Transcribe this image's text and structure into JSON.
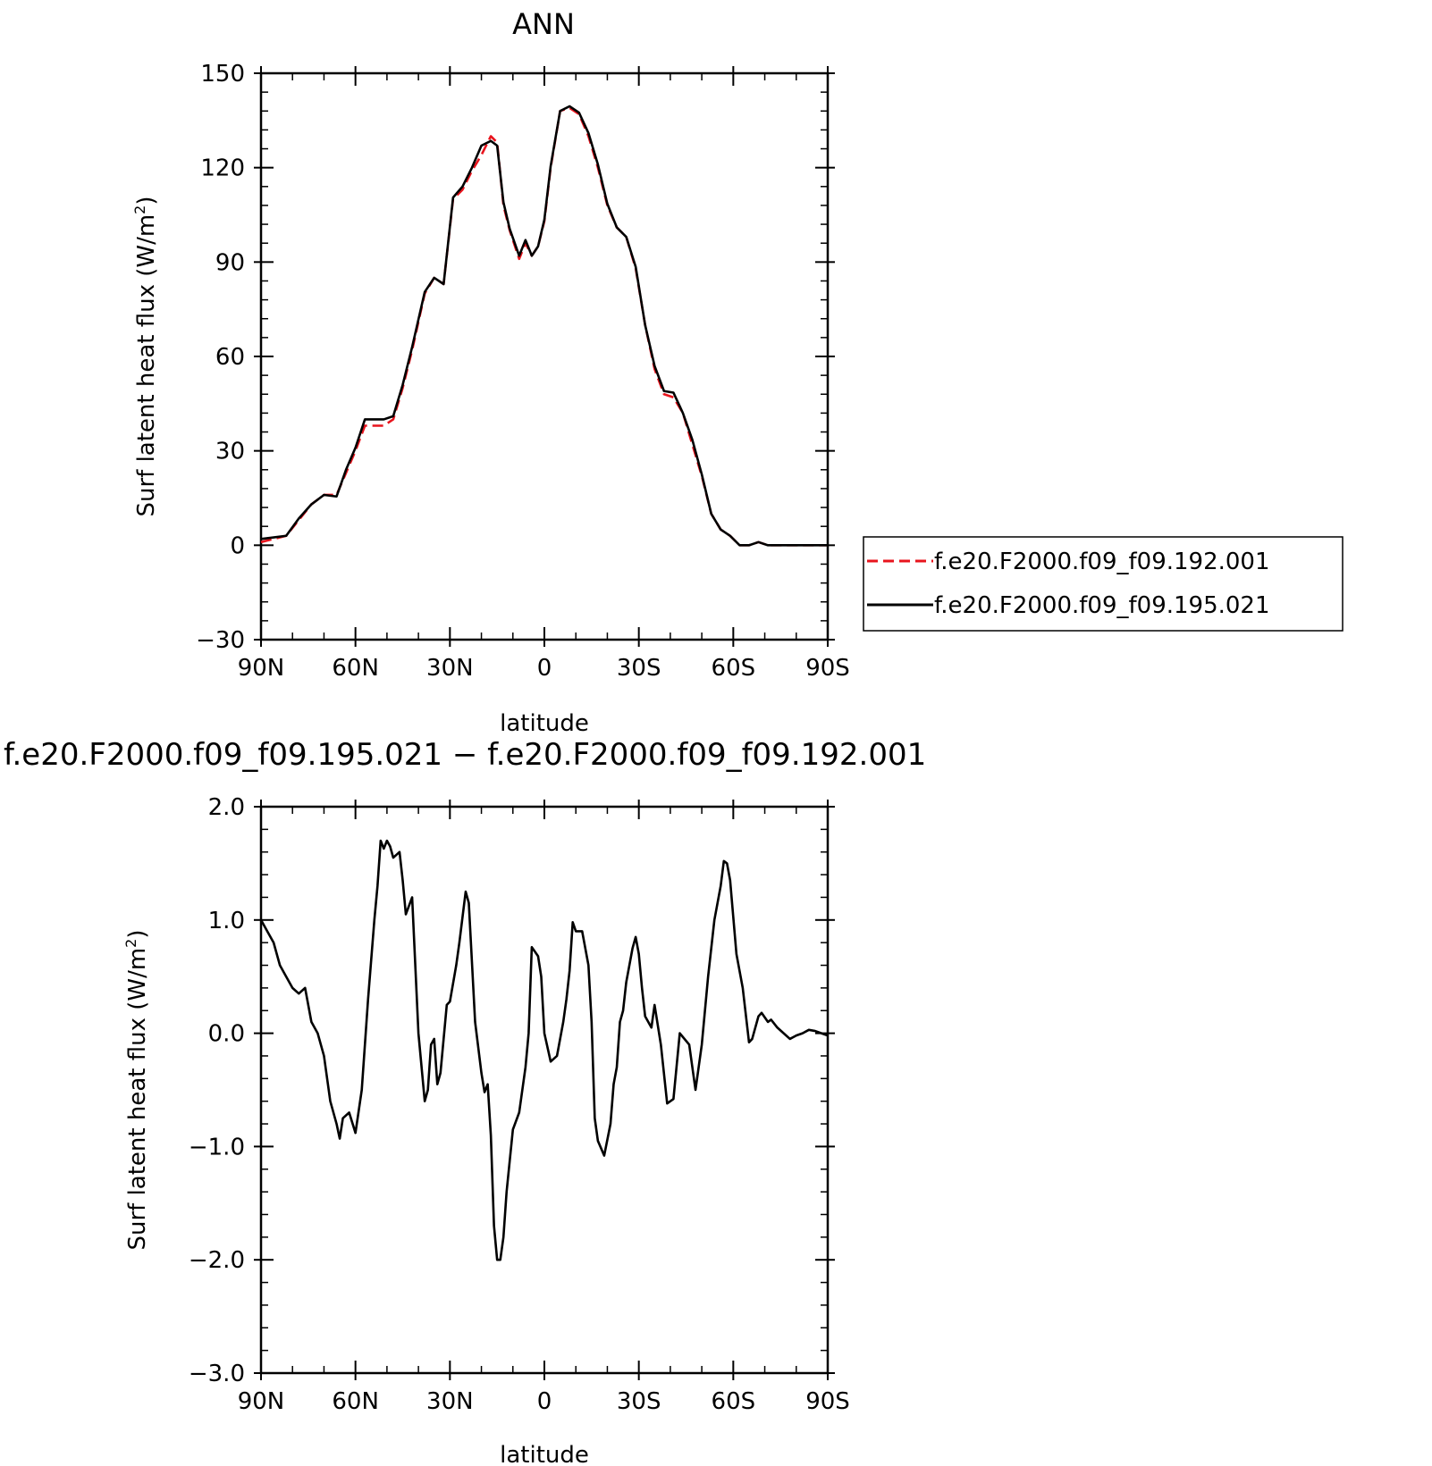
{
  "chart_data": [
    {
      "type": "line",
      "title": "ANN",
      "xlabel": "latitude",
      "ylabel": "Surf latent heat flux (W/m",
      "ylabel_sup": "2",
      "ylabel_close": ")",
      "xlim": [
        90,
        -90
      ],
      "ylim": [
        -30,
        150
      ],
      "x_ticks": [
        90,
        60,
        30,
        0,
        -30,
        -60,
        -90
      ],
      "x_tick_labels": [
        "90N",
        "60N",
        "30N",
        "0",
        "30S",
        "60S",
        "90S"
      ],
      "y_ticks": [
        -30,
        0,
        30,
        60,
        90,
        120,
        150
      ],
      "y_tick_labels": [
        "−30",
        "0",
        "30",
        "60",
        "90",
        "120",
        "150"
      ],
      "legend_position": "right",
      "x": [
        90,
        86,
        82,
        78,
        74,
        70,
        66,
        63,
        60,
        57,
        54,
        51,
        48,
        45,
        42,
        38,
        35,
        32,
        29,
        26,
        23,
        20,
        17,
        15,
        13,
        11,
        8,
        6,
        4,
        2,
        0,
        -2,
        -5,
        -8,
        -11,
        -14,
        -17,
        -20,
        -23,
        -26,
        -29,
        -32,
        -35,
        -38,
        -41,
        -44,
        -47,
        -50,
        -53,
        -56,
        -59,
        -62,
        -65,
        -68,
        -71,
        -74,
        -77,
        -80,
        -83,
        -86,
        -90
      ],
      "series": [
        {
          "name": "f.e20.F2000.f09_f09.192.001",
          "color": "#e8141d",
          "dash": "dashed",
          "values": [
            1.0,
            2.0,
            3.0,
            8.0,
            13.0,
            16.0,
            16.0,
            23.0,
            30.0,
            38.0,
            38.0,
            38.0,
            40.0,
            50.0,
            62.0,
            80.0,
            85.0,
            83.0,
            110.0,
            113.0,
            119.0,
            124.0,
            130.0,
            128.0,
            108.0,
            100.0,
            91.0,
            96.0,
            92.0,
            95.0,
            103.0,
            120.0,
            138.0,
            139.0,
            137.0,
            130.0,
            120.0,
            108.0,
            101.0,
            98.0,
            88.0,
            70.0,
            56.0,
            48.0,
            47.0,
            42.0,
            32.0,
            22.0,
            10.0,
            5.0,
            3.0,
            0.0,
            0.0,
            1.0,
            0.0,
            0.0,
            0.0,
            0.0,
            0.0,
            0.0,
            0.0
          ]
        },
        {
          "name": "f.e20.F2000.f09_f09.195.021",
          "color": "#000000",
          "dash": "solid",
          "values": [
            2.0,
            2.5,
            3.0,
            8.5,
            13.0,
            16.0,
            15.5,
            24.0,
            31.0,
            40.0,
            40.0,
            40.0,
            41.0,
            51.0,
            63.0,
            80.5,
            85.0,
            83.0,
            110.5,
            114.0,
            120.0,
            127.0,
            128.5,
            127.0,
            109.0,
            100.5,
            92.0,
            97.0,
            92.0,
            95.0,
            103.5,
            120.5,
            138.0,
            139.5,
            137.5,
            131.0,
            121.0,
            108.5,
            101.0,
            98.0,
            88.5,
            70.0,
            57.0,
            49.0,
            48.5,
            42.0,
            33.5,
            22.5,
            10.0,
            5.0,
            3.0,
            0.0,
            0.0,
            1.0,
            0.0,
            0.0,
            0.0,
            0.0,
            0.0,
            0.0,
            0.0
          ]
        }
      ]
    },
    {
      "type": "line",
      "title": "f.e20.F2000.f09_f09.195.021 − f.e20.F2000.f09_f09.192.001",
      "xlabel": "latitude",
      "ylabel": "Surf latent heat flux (W/m",
      "ylabel_sup": "2",
      "ylabel_close": ")",
      "xlim": [
        90,
        -90
      ],
      "ylim": [
        -3.0,
        2.0
      ],
      "x_ticks": [
        90,
        60,
        30,
        0,
        -30,
        -60,
        -90
      ],
      "x_tick_labels": [
        "90N",
        "60N",
        "30N",
        "0",
        "30S",
        "60S",
        "90S"
      ],
      "y_ticks": [
        -3.0,
        -2.0,
        -1.0,
        0.0,
        1.0,
        2.0
      ],
      "y_tick_labels": [
        "−3.0",
        "−2.0",
        "−1.0",
        "0.0",
        "1.0",
        "2.0"
      ],
      "x": [
        90,
        88,
        86,
        84,
        82,
        80,
        78,
        76,
        74,
        72,
        70,
        68,
        66,
        65,
        64,
        62,
        60,
        58,
        56,
        54,
        53,
        52,
        51,
        50,
        49,
        48,
        46,
        45,
        44,
        42,
        40,
        38,
        37,
        36,
        35,
        34,
        33,
        31,
        30,
        28,
        27,
        25,
        24,
        22,
        20,
        19,
        18,
        17,
        16,
        15,
        14,
        13,
        12,
        10,
        8,
        6,
        5,
        4,
        3,
        2,
        1,
        0,
        -2,
        -4,
        -6,
        -7,
        -8,
        -9,
        -10,
        -12,
        -14,
        -15,
        -16,
        -17,
        -19,
        -21,
        -22,
        -23,
        -24,
        -25,
        -26,
        -28,
        -29,
        -30,
        -31,
        -32,
        -34,
        -35,
        -37,
        -39,
        -41,
        -43,
        -46,
        -48,
        -50,
        -52,
        -54,
        -56,
        -57,
        -58,
        -59,
        -61,
        -63,
        -65,
        -66,
        -68,
        -69,
        -71,
        -72,
        -74,
        -76,
        -78,
        -80,
        -82,
        -84,
        -86,
        -88,
        -90
      ],
      "series": [
        {
          "name": "",
          "color": "#000000",
          "dash": "solid",
          "values": [
            1.0,
            0.9,
            0.8,
            0.6,
            0.5,
            0.4,
            0.35,
            0.4,
            0.1,
            0.0,
            -0.2,
            -0.6,
            -0.8,
            -0.93,
            -0.75,
            -0.7,
            -0.88,
            -0.5,
            0.3,
            1.0,
            1.3,
            1.7,
            1.63,
            1.7,
            1.65,
            1.55,
            1.6,
            1.35,
            1.05,
            1.2,
            0.0,
            -0.6,
            -0.5,
            -0.1,
            -0.05,
            -0.45,
            -0.35,
            0.25,
            0.28,
            0.6,
            0.8,
            1.25,
            1.15,
            0.1,
            -0.35,
            -0.52,
            -0.45,
            -0.9,
            -1.7,
            -2.0,
            -2.0,
            -1.8,
            -1.4,
            -0.85,
            -0.7,
            -0.3,
            0.0,
            0.76,
            0.72,
            0.68,
            0.5,
            0.0,
            -0.25,
            -0.2,
            0.1,
            0.3,
            0.55,
            0.98,
            0.9,
            0.9,
            0.6,
            0.1,
            -0.75,
            -0.95,
            -1.08,
            -0.8,
            -0.45,
            -0.3,
            0.1,
            0.2,
            0.45,
            0.75,
            0.85,
            0.7,
            0.4,
            0.15,
            0.05,
            0.25,
            -0.1,
            -0.62,
            -0.58,
            0.0,
            -0.1,
            -0.5,
            -0.1,
            0.5,
            1.0,
            1.3,
            1.52,
            1.5,
            1.35,
            0.7,
            0.4,
            -0.08,
            -0.05,
            0.15,
            0.18,
            0.1,
            0.12,
            0.05,
            0.0,
            -0.05,
            -0.02,
            0.0,
            0.03,
            0.02,
            0.0,
            -0.02
          ]
        }
      ]
    }
  ]
}
